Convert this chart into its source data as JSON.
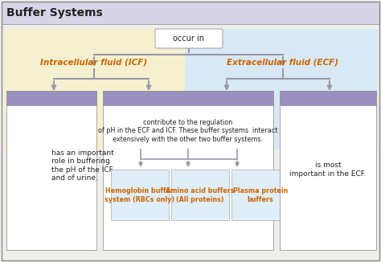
{
  "title": "Buffer Systems",
  "title_bg": "#d8d4e8",
  "main_bg": "#f0eeea",
  "icf_bg": "#f5f0d0",
  "ecf_bg": "#d8e8f5",
  "box_purple_header": "#9b8fc0",
  "box_white": "#ffffff",
  "box_border": "#aaaaaa",
  "arrow_color": "#9999aa",
  "text_color": "#222222",
  "bold_color": "#cc6600",
  "sub_box_bg": "#e0eef8",
  "occur_in": "occur in",
  "icf_label": "Intracellular fluid (ICF)",
  "ecf_label": "Extracellular fluid (ECF)",
  "left_box_text": "has an important\nrole in buffering\nthe pH of the ICF\nand of urine.",
  "center_top_text": "contribute to the regulation\nof pH in the ECF and ICF. These buffer systems  interact\nextensively with the other two buffer systems.",
  "right_box_text": "is most\nimportant in the ECF.",
  "sub1_label": "Hemoglobin buffer\nsystem (RBCs only)",
  "sub2_label": "Amino acid buffers\n(All proteins)",
  "sub3_label": "Plasma protein\nbuffers"
}
